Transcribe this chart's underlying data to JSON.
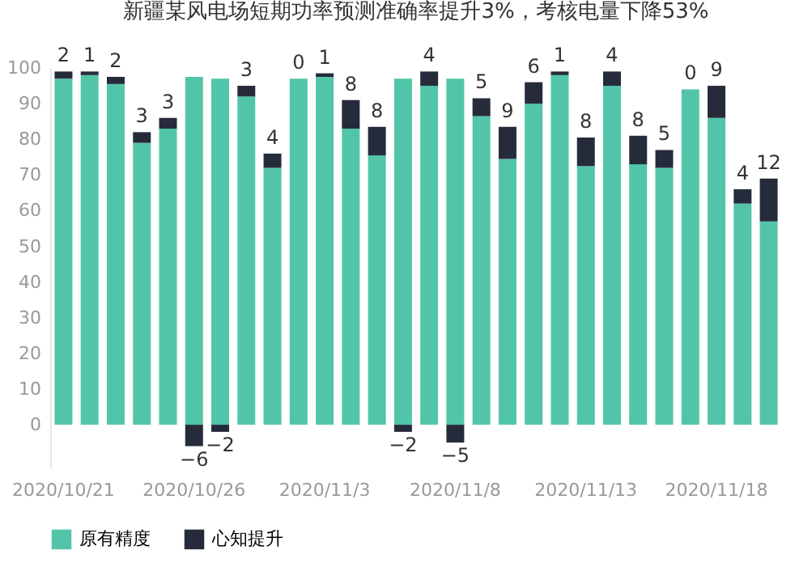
{
  "chart_data": {
    "type": "bar",
    "title": "新疆某风电场短期功率预测准确率提升3%，考核电量下降53%",
    "categories": [
      "2020/10/21",
      null,
      null,
      null,
      null,
      "2020/10/26",
      null,
      null,
      null,
      null,
      "2020/11/3",
      null,
      null,
      null,
      null,
      "2020/11/8",
      null,
      null,
      null,
      null,
      "2020/11/13",
      null,
      null,
      null,
      null,
      "2020/11/18",
      null,
      null
    ],
    "stacked": true,
    "series": [
      {
        "name": "原有精度",
        "color": "#52c5a8",
        "values": [
          97,
          98,
          95.5,
          79,
          83,
          97.5,
          97,
          92,
          72,
          97,
          97.5,
          83,
          75.5,
          97,
          95,
          97,
          86.5,
          74.5,
          90,
          98,
          72.5,
          95,
          73,
          72,
          94,
          86,
          62,
          57
        ]
      },
      {
        "name": "心知提升",
        "color": "#262b3b",
        "values": [
          2,
          1,
          2,
          3,
          3,
          -6,
          -2,
          3,
          4,
          0,
          1,
          8,
          8,
          -2,
          4,
          -5,
          5,
          9,
          6,
          1,
          8,
          4,
          8,
          5,
          0,
          9,
          4,
          12
        ],
        "value_labels": [
          "2",
          "1",
          "2",
          "3",
          "3",
          "−6",
          "−2",
          "3",
          "4",
          "0",
          "1",
          "8",
          "8",
          "−2",
          "4",
          "−5",
          "5",
          "9",
          "6",
          "1",
          "8",
          "4",
          "8",
          "5",
          "0",
          "9",
          "4",
          "12"
        ]
      }
    ],
    "ylim": [
      -12,
      100
    ],
    "yticks": [
      0,
      10,
      20,
      30,
      40,
      50,
      60,
      70,
      80,
      90,
      100
    ],
    "grid": false,
    "legend": "bottom"
  }
}
